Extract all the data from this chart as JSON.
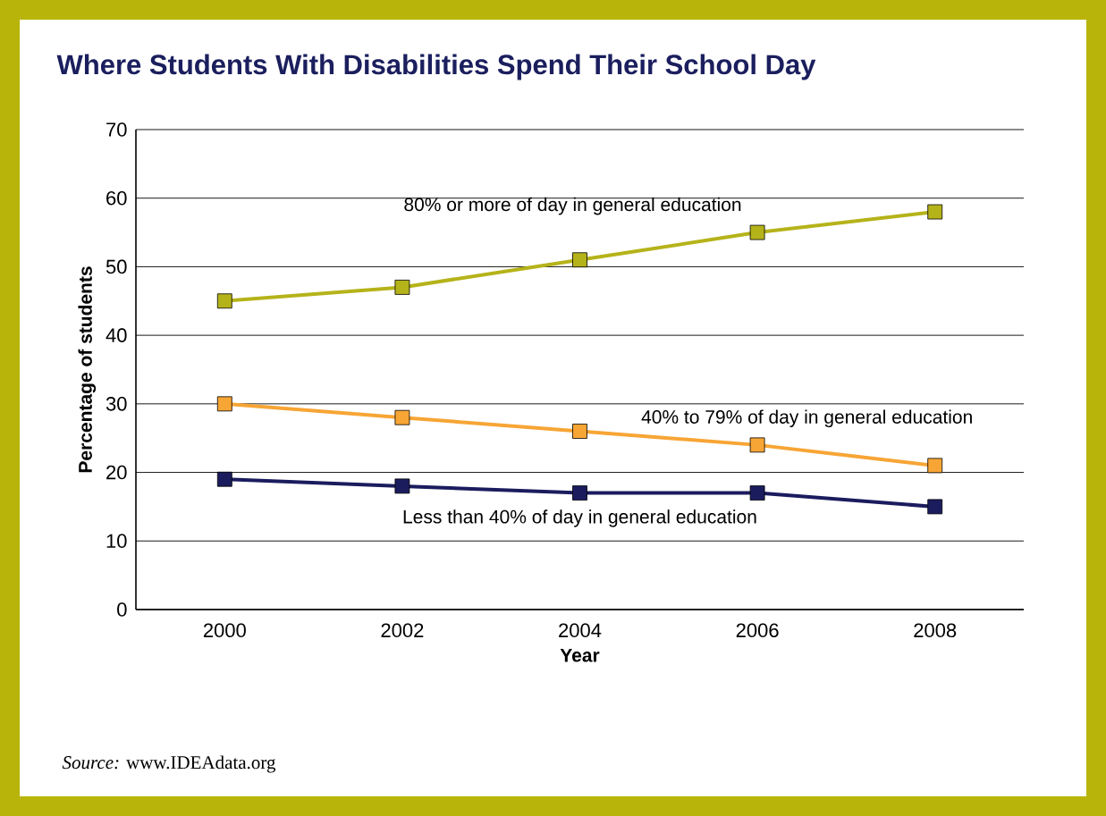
{
  "chart_data": {
    "type": "line",
    "title": "Where Students With Disabilities Spend Their School Day",
    "xlabel": "Year",
    "ylabel": "Percentage of students",
    "x": [
      2000,
      2002,
      2004,
      2006,
      2008
    ],
    "series": [
      {
        "name": "80% or more of day in general education",
        "color": "#b5b31a",
        "values": [
          45,
          47,
          51,
          55,
          58
        ]
      },
      {
        "name": "40% to 79% of day in general education",
        "color": "#f7a535",
        "values": [
          30,
          28,
          26,
          24,
          21
        ]
      },
      {
        "name": "Less than 40% of day in general education",
        "color": "#1b1c5e",
        "values": [
          19,
          18,
          17,
          17,
          15
        ]
      }
    ],
    "xlim": [
      1999,
      2009
    ],
    "xticks": [
      2000,
      2002,
      2004,
      2006,
      2008
    ],
    "ylim": [
      0,
      70
    ],
    "yticks": [
      0,
      10,
      20,
      30,
      40,
      50,
      60,
      70
    ],
    "grid": "y",
    "legend": false,
    "marker": "square",
    "line_style": "solid",
    "annotations": [
      "*Source:* www.IDEAdata.org"
    ]
  }
}
